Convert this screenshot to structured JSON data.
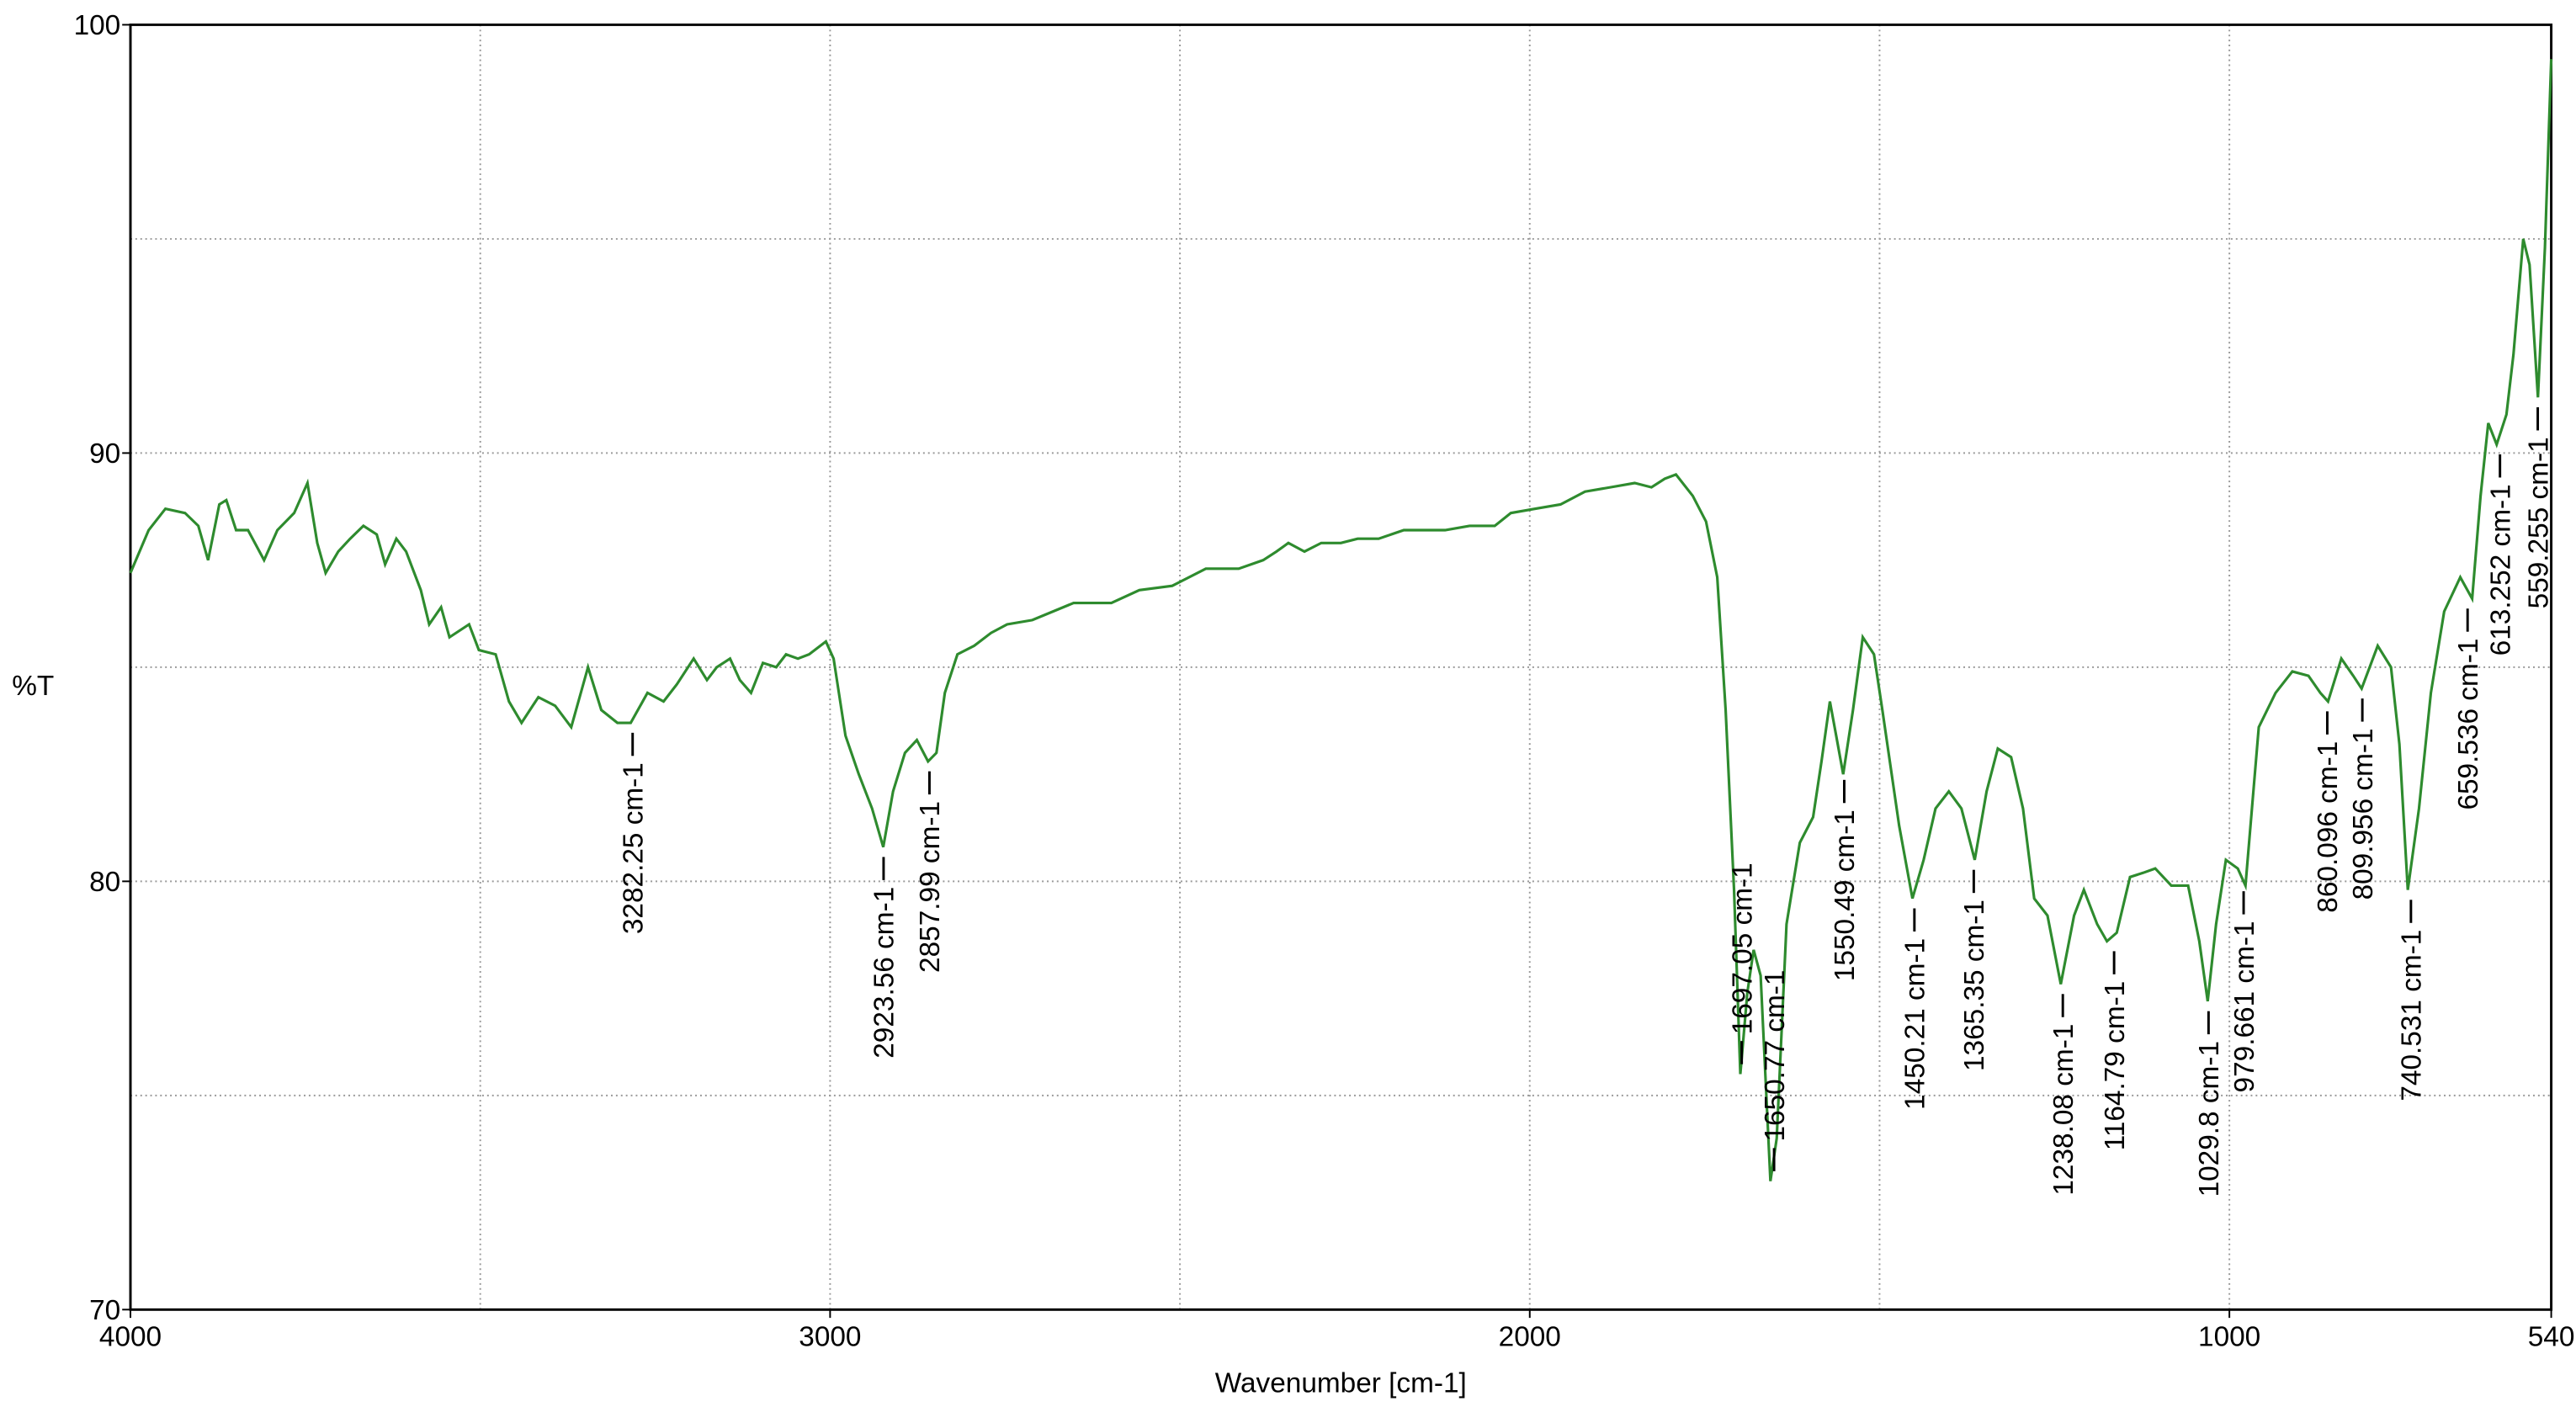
{
  "chart_data": {
    "type": "line",
    "xlabel": "Wavenumber [cm-1]",
    "ylabel": "%T",
    "color": "#2e8b2e",
    "xlim": [
      4000,
      540
    ],
    "ylim": [
      70,
      100
    ],
    "xticks": [
      4000,
      3000,
      2000,
      1000,
      540
    ],
    "yticks": [
      70,
      80,
      90,
      100
    ],
    "xgrid": [
      3500,
      3000,
      2500,
      2000,
      1500,
      1000
    ],
    "ygrid": [
      75,
      80,
      85,
      90,
      95
    ],
    "grid": true,
    "x": [
      4000,
      3974,
      3950,
      3922,
      3903,
      3889,
      3873,
      3863,
      3849,
      3832,
      3809,
      3790,
      3766,
      3747,
      3733,
      3721,
      3703,
      3686,
      3667,
      3648,
      3636,
      3620,
      3606,
      3585,
      3573,
      3556,
      3544,
      3516,
      3502,
      3478,
      3459,
      3441,
      3417,
      3393,
      3370,
      3346,
      3327,
      3304,
      3285,
      3261,
      3238,
      3219,
      3195,
      3176,
      3162,
      3143,
      3129,
      3113,
      3096,
      3077,
      3063,
      3046,
      3030,
      3006,
      2995,
      2978,
      2959,
      2940,
      2924,
      2910,
      2893,
      2876,
      2860,
      2848,
      2836,
      2818,
      2794,
      2770,
      2747,
      2711,
      2652,
      2598,
      2558,
      2511,
      2463,
      2416,
      2381,
      2362,
      2345,
      2322,
      2298,
      2270,
      2246,
      2216,
      2180,
      2152,
      2121,
      2086,
      2050,
      2027,
      1992,
      1956,
      1921,
      1885,
      1850,
      1826,
      1807,
      1791,
      1767,
      1748,
      1732,
      1720,
      1708,
      1699,
      1689,
      1680,
      1670,
      1656,
      1647,
      1633,
      1614,
      1595,
      1583,
      1571,
      1562,
      1552,
      1538,
      1524,
      1508,
      1496,
      1472,
      1453,
      1437,
      1420,
      1401,
      1383,
      1364,
      1347,
      1331,
      1312,
      1295,
      1279,
      1260,
      1241,
      1222,
      1208,
      1189,
      1175,
      1161,
      1142,
      1123,
      1106,
      1083,
      1059,
      1043,
      1031,
      1019,
      1005,
      988,
      977,
      958,
      934,
      910,
      887,
      870,
      859,
      840,
      823,
      811,
      788,
      769,
      757,
      745,
      729,
      712,
      693,
      670,
      653,
      641,
      630,
      618,
      604,
      594,
      580,
      571,
      559,
      549,
      540
    ],
    "values": [
      87.2,
      88.2,
      88.7,
      88.6,
      88.3,
      87.5,
      88.8,
      88.9,
      88.2,
      88.2,
      87.5,
      88.2,
      88.6,
      89.3,
      87.9,
      87.2,
      87.7,
      88.0,
      88.3,
      88.1,
      87.4,
      88.0,
      87.7,
      86.8,
      86.0,
      86.4,
      85.7,
      86.0,
      85.4,
      85.3,
      84.2,
      83.7,
      84.3,
      84.1,
      83.6,
      85.0,
      84.0,
      83.7,
      83.7,
      84.4,
      84.2,
      84.6,
      85.2,
      84.7,
      85.0,
      85.2,
      84.7,
      84.4,
      85.1,
      85.0,
      85.3,
      85.2,
      85.3,
      85.6,
      85.2,
      83.4,
      82.5,
      81.7,
      80.8,
      82.1,
      83.0,
      83.3,
      82.8,
      83.0,
      84.4,
      85.3,
      85.5,
      85.8,
      86.0,
      86.1,
      86.5,
      86.5,
      86.8,
      86.9,
      87.3,
      87.3,
      87.5,
      87.7,
      87.9,
      87.7,
      87.9,
      87.9,
      88.0,
      88.0,
      88.2,
      88.2,
      88.2,
      88.3,
      88.3,
      88.6,
      88.7,
      88.8,
      89.1,
      89.2,
      89.3,
      89.2,
      89.4,
      89.5,
      89.0,
      88.4,
      87.1,
      84.0,
      79.8,
      75.5,
      77.4,
      78.4,
      77.8,
      73.0,
      74.0,
      79.0,
      80.9,
      81.5,
      82.8,
      84.2,
      83.4,
      82.5,
      84.0,
      85.7,
      85.3,
      84.0,
      81.3,
      79.6,
      80.5,
      81.7,
      82.1,
      81.7,
      80.5,
      82.1,
      83.1,
      82.9,
      81.7,
      79.6,
      79.2,
      77.6,
      79.2,
      79.8,
      79.0,
      78.6,
      78.8,
      80.1,
      80.2,
      80.3,
      79.9,
      79.9,
      78.6,
      77.2,
      79.0,
      80.5,
      80.3,
      79.9,
      83.6,
      84.4,
      84.9,
      84.8,
      84.4,
      84.2,
      85.2,
      84.8,
      84.5,
      85.5,
      85.0,
      83.2,
      79.8,
      81.7,
      84.4,
      86.3,
      87.1,
      86.6,
      89.0,
      90.7,
      90.2,
      90.9,
      92.3,
      95.0,
      94.4,
      91.3,
      94.8,
      99.2
    ],
    "peaks": [
      {
        "x": 3282.25,
        "y": 83.7,
        "label": "3282.25 cm-1"
      },
      {
        "x": 2923.56,
        "y": 80.8,
        "label": "2923.56 cm-1"
      },
      {
        "x": 2857.99,
        "y": 82.8,
        "label": "2857.99 cm-1"
      },
      {
        "x": 1697.05,
        "y": 75.5,
        "label": "1697.05 cm-1"
      },
      {
        "x": 1650.77,
        "y": 73.0,
        "label": "1650.77 cm-1"
      },
      {
        "x": 1550.49,
        "y": 82.6,
        "label": "1550.49 cm-1"
      },
      {
        "x": 1450.21,
        "y": 79.6,
        "label": "1450.21 cm-1"
      },
      {
        "x": 1365.35,
        "y": 80.5,
        "label": "1365.35 cm-1"
      },
      {
        "x": 1238.08,
        "y": 77.6,
        "label": "1238.08 cm-1"
      },
      {
        "x": 1164.79,
        "y": 78.6,
        "label": "1164.79 cm-1"
      },
      {
        "x": 1029.8,
        "y": 77.2,
        "label": "1029.8 cm-1"
      },
      {
        "x": 979.661,
        "y": 80.0,
        "label": "979.661 cm-1"
      },
      {
        "x": 860.096,
        "y": 84.2,
        "label": "860.096 cm-1"
      },
      {
        "x": 809.956,
        "y": 84.5,
        "label": "809.956 cm-1"
      },
      {
        "x": 740.531,
        "y": 79.8,
        "label": "740.531 cm-1"
      },
      {
        "x": 659.536,
        "y": 86.6,
        "label": "659.536 cm-1"
      },
      {
        "x": 613.252,
        "y": 90.2,
        "label": "613.252 cm-1"
      },
      {
        "x": 559.255,
        "y": 91.3,
        "label": "559.255 cm-1"
      }
    ]
  }
}
